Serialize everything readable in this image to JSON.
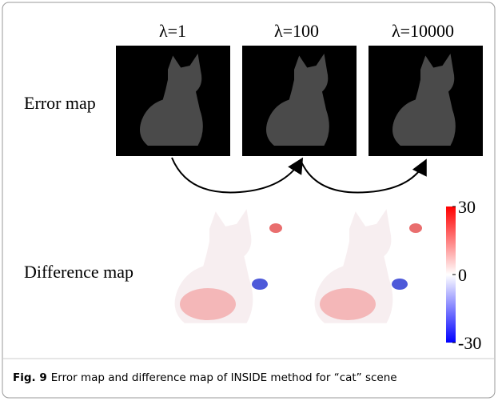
{
  "columns": [
    "λ=1",
    "λ=100",
    "λ=10000"
  ],
  "rows": [
    "Error map",
    "Difference map"
  ],
  "colorbar": {
    "lim": [
      -30,
      30
    ],
    "ticks": [
      30,
      0,
      -30
    ],
    "colors": [
      "#0000ff",
      "#ffffff",
      "#ff0000"
    ]
  },
  "caption": {
    "label": "Fig. 9",
    "text": "Error map and difference map of INSIDE method for “cat” scene"
  }
}
